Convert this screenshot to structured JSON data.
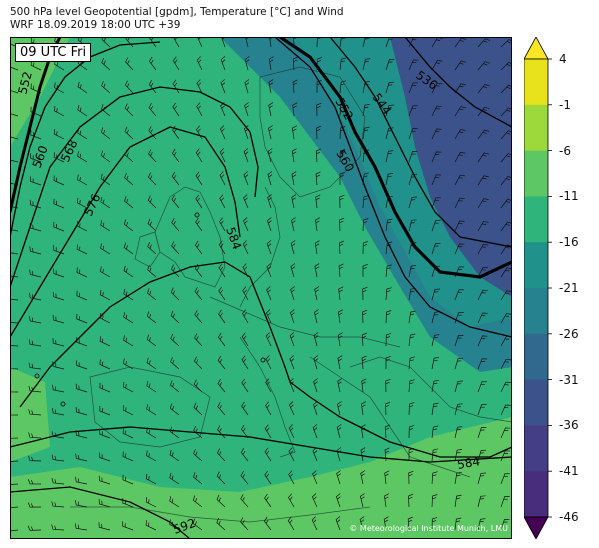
{
  "header": {
    "title_line1": "500 hPa level Geopotential [gpdm], Temperature [°C] and Wind",
    "title_line2": "WRF 18.09.2019 18:00 UTC +39"
  },
  "map": {
    "valid_time_label": "09 UTC Fri",
    "credit": "© Meteorological Institute Munich, LMU",
    "contour_labels": [
      "552",
      "560",
      "568",
      "576",
      "584",
      "552",
      "560",
      "544",
      "536",
      "584",
      "592"
    ],
    "colors": {
      "land_outline": "#1f3a32",
      "contour": "#000000"
    }
  },
  "colorbar": {
    "labels": [
      "4",
      "-1",
      "-6",
      "-11",
      "-16",
      "-21",
      "-26",
      "-31",
      "-36",
      "-41",
      "-46"
    ],
    "colors": [
      "#e7e21b",
      "#9dd93b",
      "#5dc863",
      "#2fb47c",
      "#21918c",
      "#26828e",
      "#31688e",
      "#3b528b",
      "#433e85",
      "#472d7b",
      "#440154"
    ],
    "over_color": "#fde725",
    "under_color": "#440154"
  }
}
